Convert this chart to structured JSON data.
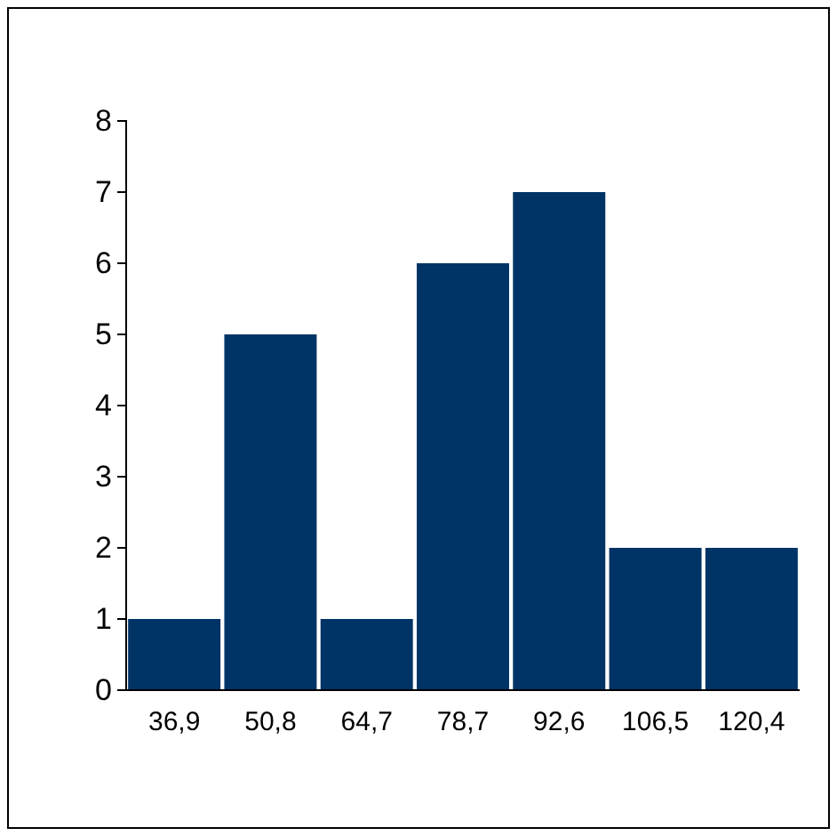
{
  "chart_data": {
    "type": "bar",
    "categories": [
      "36,9",
      "50,8",
      "64,7",
      "78,7",
      "92,6",
      "106,5",
      "120,4"
    ],
    "values": [
      1,
      5,
      1,
      6,
      7,
      2,
      2
    ],
    "color": "#003366",
    "ylim": [
      0,
      8
    ],
    "yticks": [
      0,
      1,
      2,
      3,
      4,
      5,
      6,
      7,
      8
    ]
  }
}
